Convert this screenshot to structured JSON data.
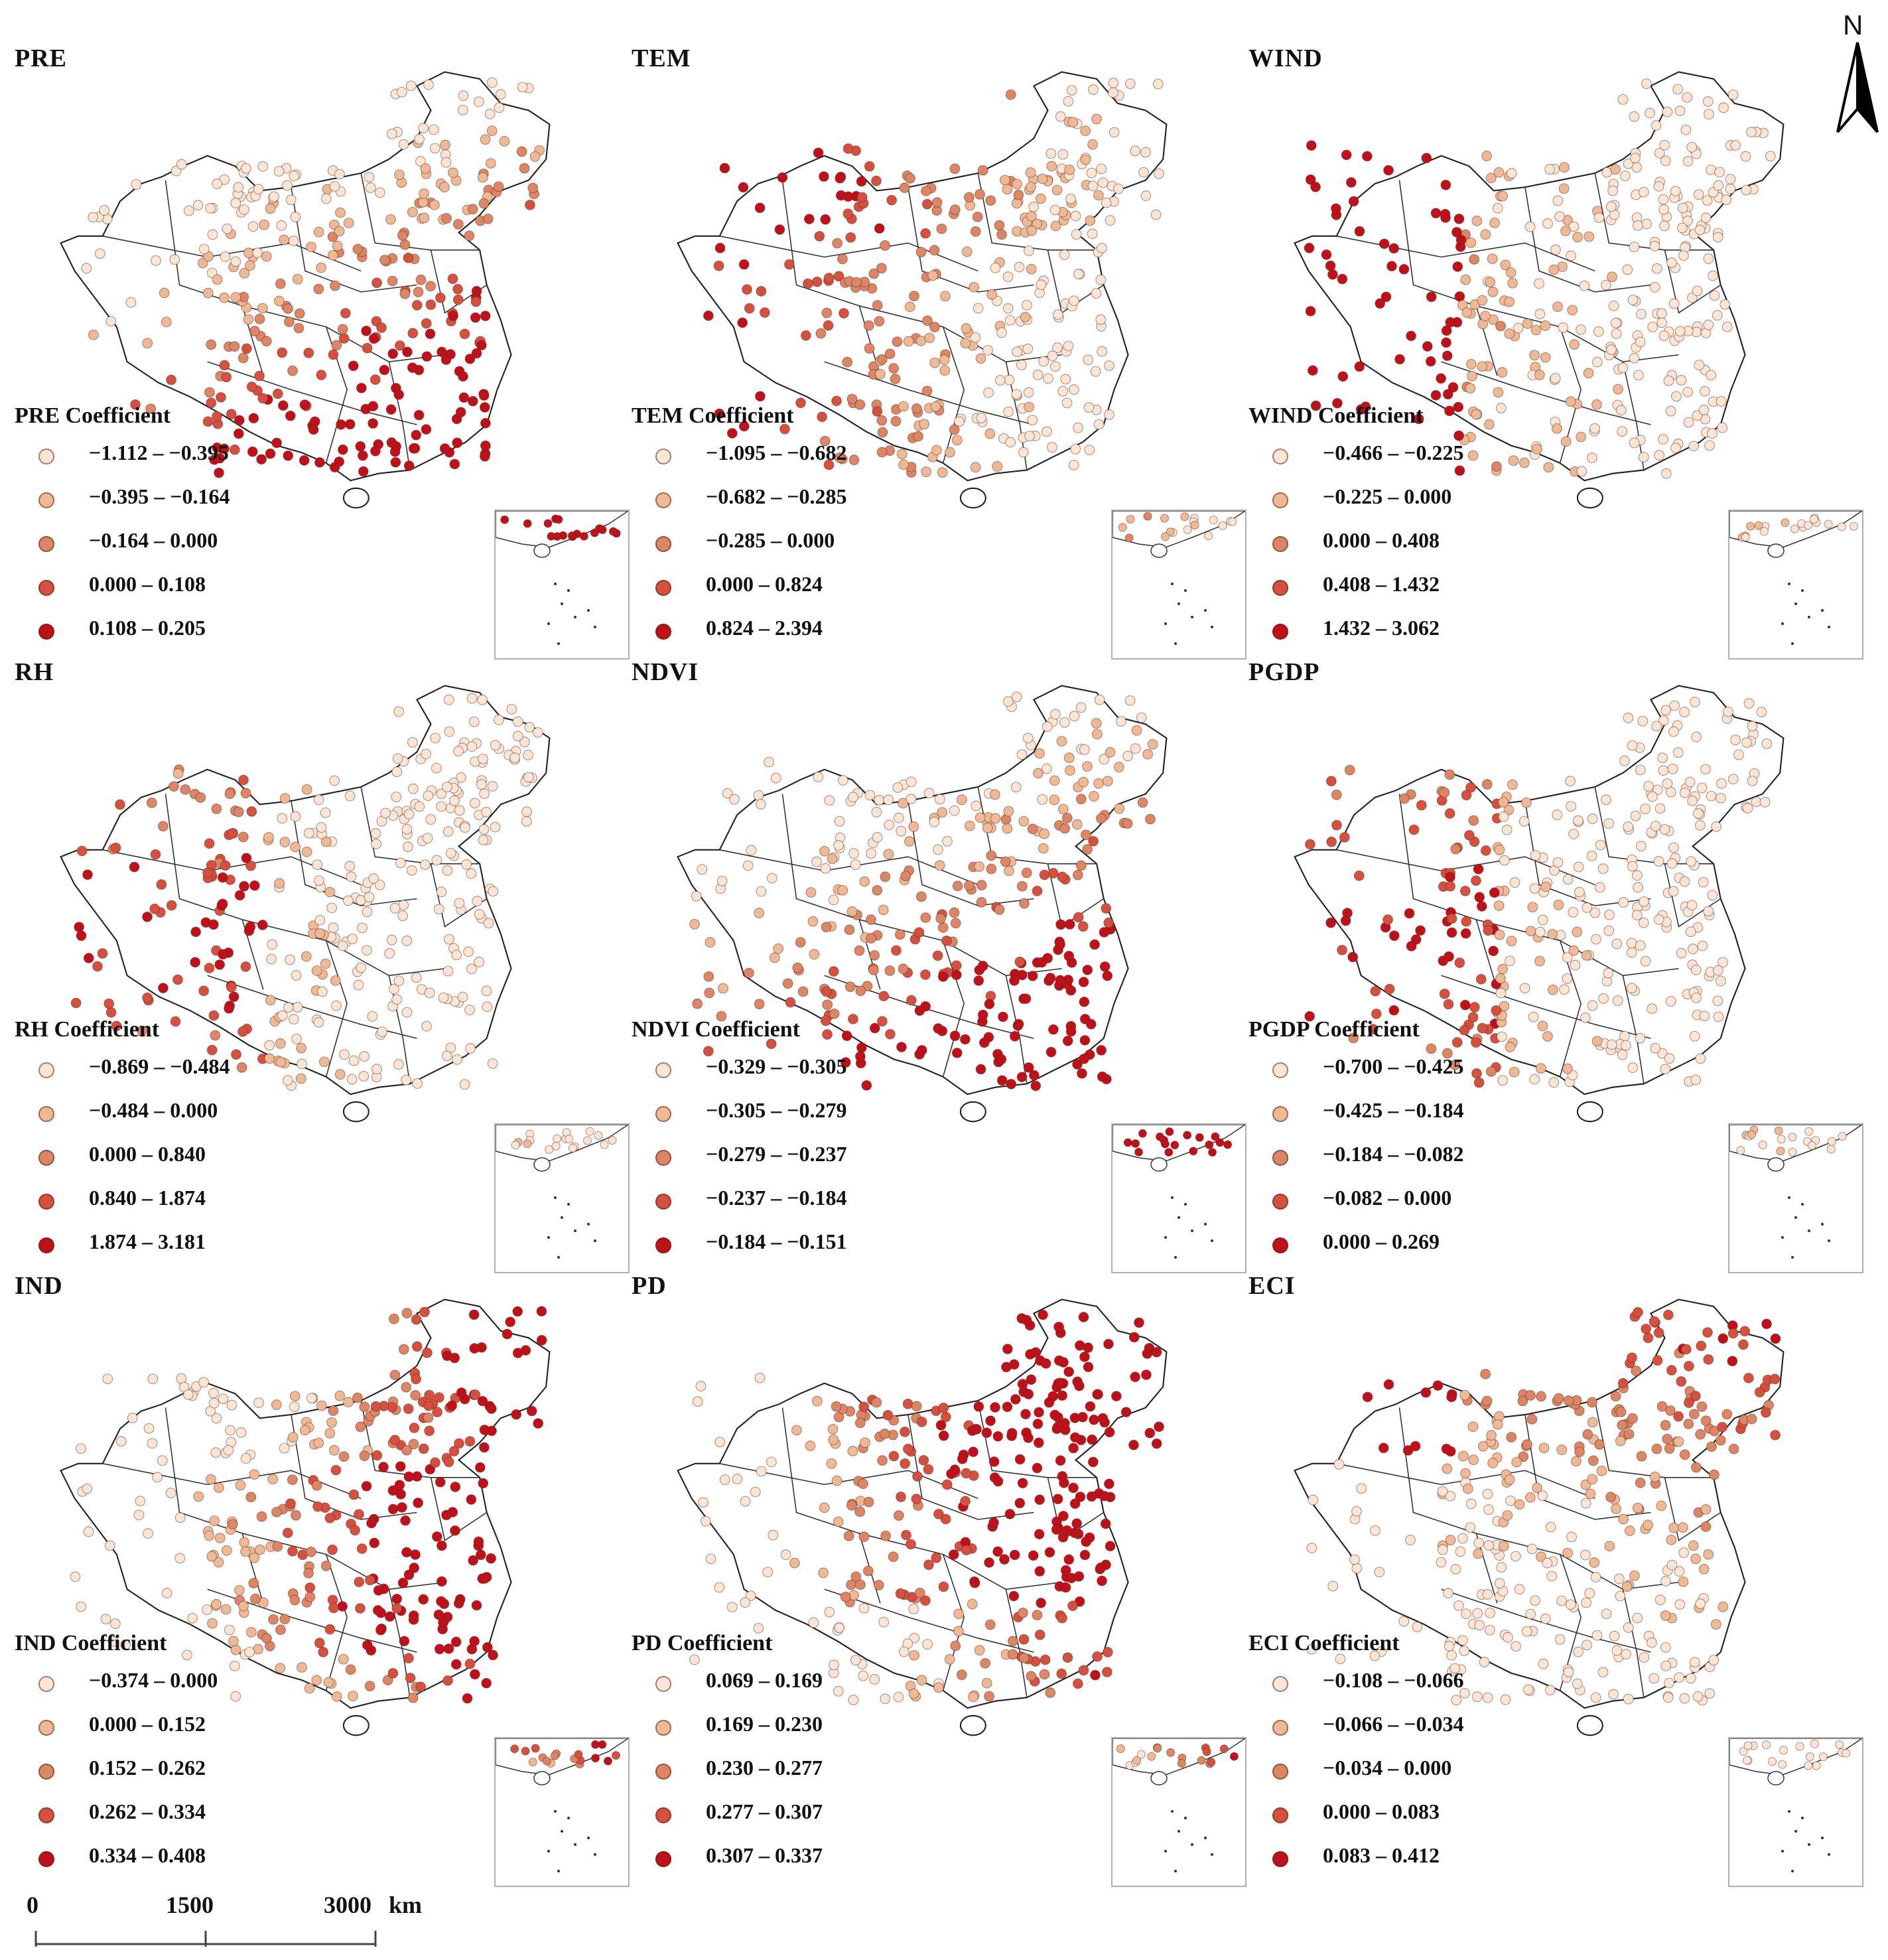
{
  "north": {
    "label": "N",
    "icon": "north-arrow-icon"
  },
  "scale": {
    "ticks": [
      "0",
      "1500",
      "3000"
    ],
    "unit": "km"
  },
  "panels": [
    {
      "id": "pre",
      "title": "PRE",
      "legend_title": "PRE Coefficient",
      "classes": [
        "−1.112 – −0.395",
        "−0.395 – −0.164",
        "−0.164 – 0.000",
        "0.000 – 0.108",
        "0.108 – 0.205"
      ],
      "pattern": "south"
    },
    {
      "id": "tem",
      "title": "TEM",
      "legend_title": "TEM Coefficient",
      "classes": [
        "−1.095 – −0.682",
        "−0.682 – −0.285",
        "−0.285 – 0.000",
        "0.000 – 0.824",
        "0.824 – 2.394"
      ],
      "pattern": "west"
    },
    {
      "id": "wind",
      "title": "WIND",
      "legend_title": "WIND Coefficient",
      "classes": [
        "−0.466 – −0.225",
        "−0.225 – 0.000",
        "0.000 – 0.408",
        "0.408 – 1.432",
        "1.432 – 3.062"
      ],
      "pattern": "northwest"
    },
    {
      "id": "rh",
      "title": "RH",
      "legend_title": "RH Coefficient",
      "classes": [
        "−0.869 – −0.484",
        "−0.484 – 0.000",
        "0.000 – 0.840",
        "0.840 – 1.874",
        "1.874 – 3.181"
      ],
      "pattern": "southwest"
    },
    {
      "id": "ndvi",
      "title": "NDVI",
      "legend_title": "NDVI Coefficient",
      "classes": [
        "−0.329 – −0.305",
        "−0.305 – −0.279",
        "−0.279 – −0.237",
        "−0.237 – −0.184",
        "−0.184 – −0.151"
      ],
      "pattern": "south"
    },
    {
      "id": "pgdp",
      "title": "PGDP",
      "legend_title": "PGDP Coefficient",
      "classes": [
        "−0.700 – −0.425",
        "−0.425 – −0.184",
        "−0.184 – −0.082",
        "−0.082 – 0.000",
        "0.000 – 0.269"
      ],
      "pattern": "southwest"
    },
    {
      "id": "ind",
      "title": "IND",
      "legend_title": "IND Coefficient",
      "classes": [
        "−0.374 – 0.000",
        "0.000 – 0.152",
        "0.152 – 0.262",
        "0.262 – 0.334",
        "0.334 – 0.408"
      ],
      "pattern": "east"
    },
    {
      "id": "pd",
      "title": "PD",
      "legend_title": "PD Coefficient",
      "classes": [
        "0.069 – 0.169",
        "0.169 – 0.230",
        "0.230 – 0.277",
        "0.277 – 0.307",
        "0.307 – 0.337"
      ],
      "pattern": "northeast"
    },
    {
      "id": "eci",
      "title": "ECI",
      "legend_title": "ECI Coefficient",
      "classes": [
        "−0.108 – −0.066",
        "−0.066 – −0.034",
        "−0.034 – 0.000",
        "0.000 – 0.083",
        "0.083 – 0.412"
      ],
      "pattern": "north"
    }
  ],
  "colors": [
    "#fbe6d6",
    "#efb996",
    "#dc8665",
    "#d6503f",
    "#c0111a"
  ]
}
